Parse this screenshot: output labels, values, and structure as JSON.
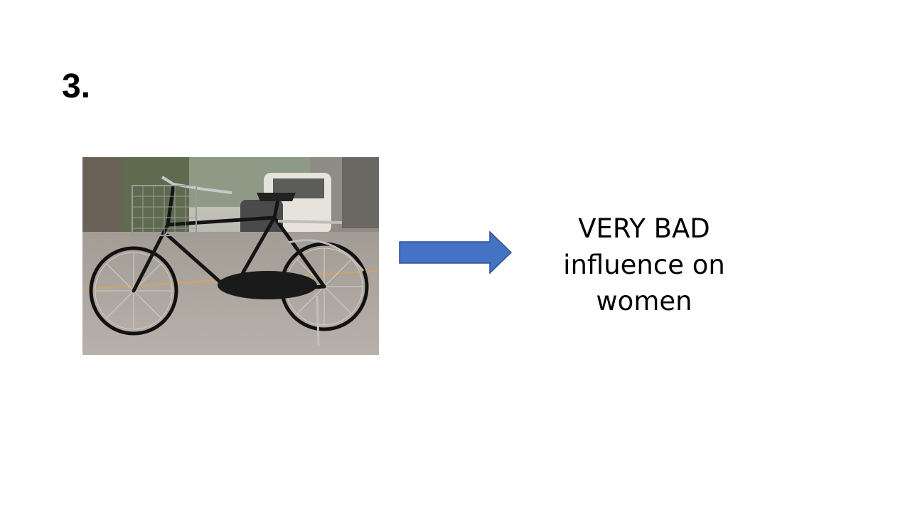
{
  "slide": {
    "title": "3.",
    "image": {
      "depicts": "bicycle-photo"
    },
    "arrow": {
      "color": "#4472c4",
      "direction": "right"
    },
    "caption_lines": [
      "VERY BAD",
      "influence on",
      "women"
    ]
  }
}
